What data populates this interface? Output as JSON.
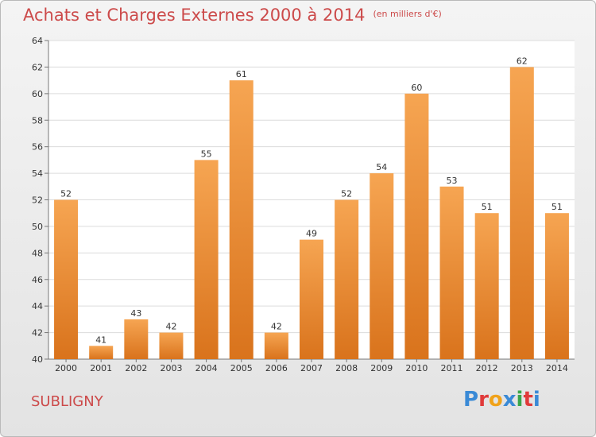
{
  "header": {
    "title": "Achats et Charges Externes 2000 à 2014",
    "unit": "(en milliers d'€)"
  },
  "footer": {
    "town": "SUBLIGNY",
    "logo_letters": [
      "P",
      "r",
      "o",
      "x",
      "i",
      "t",
      "i"
    ]
  },
  "colors": {
    "title": "#cc4a4a",
    "bar_light": "#f6a552",
    "bar_dark": "#d9731c",
    "logo": [
      "#3a8ad6",
      "#e03a3a",
      "#f0a21a",
      "#3a8ad6",
      "#3aa64a",
      "#e03a3a",
      "#3a8ad6"
    ]
  },
  "chart_data": {
    "type": "bar",
    "categories": [
      "2000",
      "2001",
      "2002",
      "2003",
      "2004",
      "2005",
      "2006",
      "2007",
      "2008",
      "2009",
      "2010",
      "2011",
      "2012",
      "2013",
      "2014"
    ],
    "values": [
      52,
      41,
      43,
      42,
      55,
      61,
      42,
      49,
      52,
      54,
      60,
      53,
      51,
      62,
      51
    ],
    "ylim": [
      40,
      64
    ],
    "yticks": [
      40,
      42,
      44,
      46,
      48,
      50,
      52,
      54,
      56,
      58,
      60,
      62,
      64
    ],
    "grid": true,
    "title": "Achats et Charges Externes 2000 à 2014",
    "subtitle": "(en milliers d'€)"
  }
}
